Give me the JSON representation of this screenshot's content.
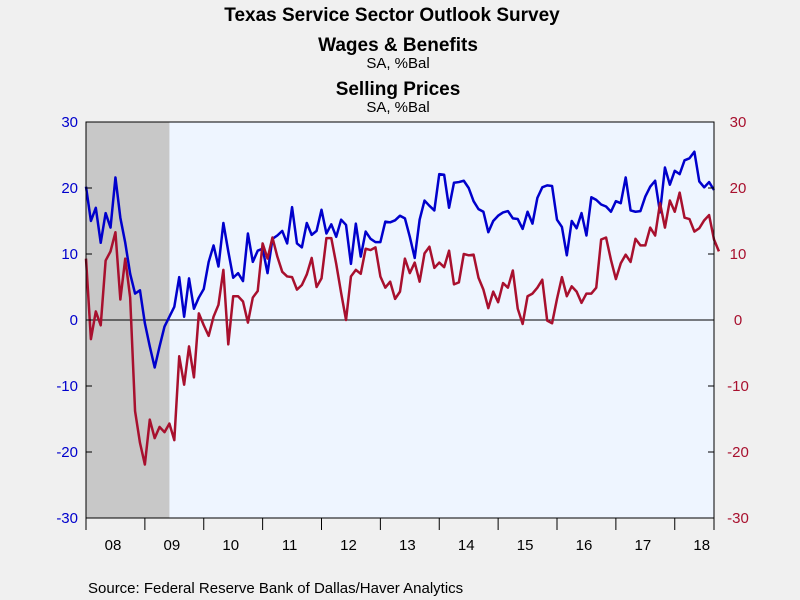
{
  "chart_data": {
    "type": "line",
    "title": "Texas Service Sector Outlook Survey",
    "series": [
      {
        "name": "Wages & Benefits",
        "unit": "SA, %Bal",
        "axis": "left",
        "color": "#0000cc",
        "values": [
          20.2,
          15,
          17,
          11.7,
          16.2,
          14,
          21.6,
          15.5,
          11.7,
          7,
          4,
          4.5,
          -0.5,
          -4,
          -7.2,
          -4,
          -1,
          0.5,
          2,
          6.5,
          0.5,
          6.3,
          1.7,
          3.4,
          4.7,
          8.8,
          11.3,
          8.1,
          14.7,
          10.4,
          6.4,
          7.1,
          5.9,
          13.1,
          8.8,
          10.5,
          10.8,
          7.1,
          12.3,
          12.8,
          13.5,
          11.6,
          17.1,
          11.6,
          11,
          14.7,
          12.9,
          13.5,
          16.7,
          13.1,
          14.5,
          12.6,
          15.2,
          14.4,
          8.5,
          14.6,
          9.6,
          13.4,
          12.3,
          11.8,
          11.8,
          14.9,
          14.8,
          15.1,
          15.8,
          15.4,
          12.6,
          9.4,
          15.2,
          18.1,
          17.3,
          16.6,
          22.1,
          22,
          17,
          20.8,
          20.9,
          21.1,
          20,
          18,
          16.8,
          16.4,
          13.3,
          15,
          15.8,
          16.3,
          16.5,
          15.4,
          15.3,
          13.8,
          16.4,
          14.6,
          18.5,
          20.1,
          20.4,
          20.3,
          15.2,
          14.1,
          9.8,
          15,
          13.9,
          16.2,
          12.8,
          18.6,
          18.2,
          17.5,
          17.2,
          16.4,
          18,
          17.7,
          21.6,
          16.6,
          16.4,
          16.5,
          18.7,
          20.2,
          21.1,
          16.3,
          23.1,
          20.5,
          22.6,
          22.1,
          24.2,
          24.5,
          25.5,
          21,
          20.1,
          20.9,
          19.7
        ],
        "values_note": ""
      },
      {
        "name": "Selling Prices",
        "unit": "SA, %Bal",
        "axis": "right",
        "color": "#a8102e",
        "values": [
          9.3,
          -2.9,
          1.3,
          -0.8,
          9,
          10.4,
          13.3,
          3.1,
          9.3,
          3.4,
          -13.8,
          -18.6,
          -21.9,
          -15.1,
          -17.9,
          -16.2,
          -17,
          -15.7,
          -18.2,
          -5.5,
          -9.8,
          -4,
          -8.7,
          1,
          -0.8,
          -2.4,
          0.5,
          2.3,
          7.6,
          -3.7,
          3.6,
          3.6,
          2.8,
          -0.4,
          3.4,
          4.4,
          11.6,
          9.3,
          12.5,
          9.6,
          7.3,
          6.6,
          6.5,
          4.6,
          5.3,
          6.9,
          9.4,
          5,
          6.3,
          12.4,
          12.4,
          8.5,
          4.1,
          0,
          6.6,
          7.6,
          7,
          10.8,
          10.6,
          11,
          6.6,
          4.9,
          5.8,
          3.2,
          4.3,
          9.3,
          7.1,
          8.7,
          5.8,
          10.1,
          11.1,
          7.9,
          8.7,
          8,
          10.5,
          5.4,
          5.7,
          10,
          9.8,
          9.9,
          6.4,
          4.6,
          1.8,
          4.3,
          2.7,
          5.6,
          4.9,
          7.5,
          1.7,
          -0.6,
          3.6,
          4,
          4.9,
          6.1,
          -0.1,
          -0.5,
          3.2,
          6.5,
          3.6,
          5.1,
          4.3,
          2.6,
          4,
          4,
          4.9,
          12.2,
          12.5,
          9.1,
          6.2,
          8.6,
          9.9,
          8.8,
          12.3,
          11.3,
          11.3,
          14,
          12.8,
          17.7,
          14,
          18.1,
          16.4,
          19.3,
          15.5,
          15.3,
          13.4,
          13.9,
          15.1,
          15.9,
          12.2,
          10.4
        ],
        "values_note": ""
      }
    ],
    "x_start_label": "08",
    "x_tick_labels": [
      "08",
      "09",
      "10",
      "11",
      "12",
      "13",
      "14",
      "15",
      "16",
      "17",
      "18"
    ],
    "x_tick_step": 12,
    "y_left": {
      "min": -30,
      "max": 30,
      "ticks": [
        "-30",
        "-20",
        "-10",
        "0",
        "10",
        "20",
        "30"
      ]
    },
    "y_right": {
      "min": -30,
      "max": 30,
      "ticks": [
        "-30",
        "-20",
        "-10",
        "0",
        "10",
        "20",
        "30"
      ]
    },
    "recession_shading": {
      "from_index": 0,
      "to_index": 17,
      "color": "#c8c8c8"
    },
    "zero_line": true,
    "plot_background": "#eef5ff",
    "source": "Source:  Federal Reserve Bank of Dallas/Haver Analytics"
  }
}
